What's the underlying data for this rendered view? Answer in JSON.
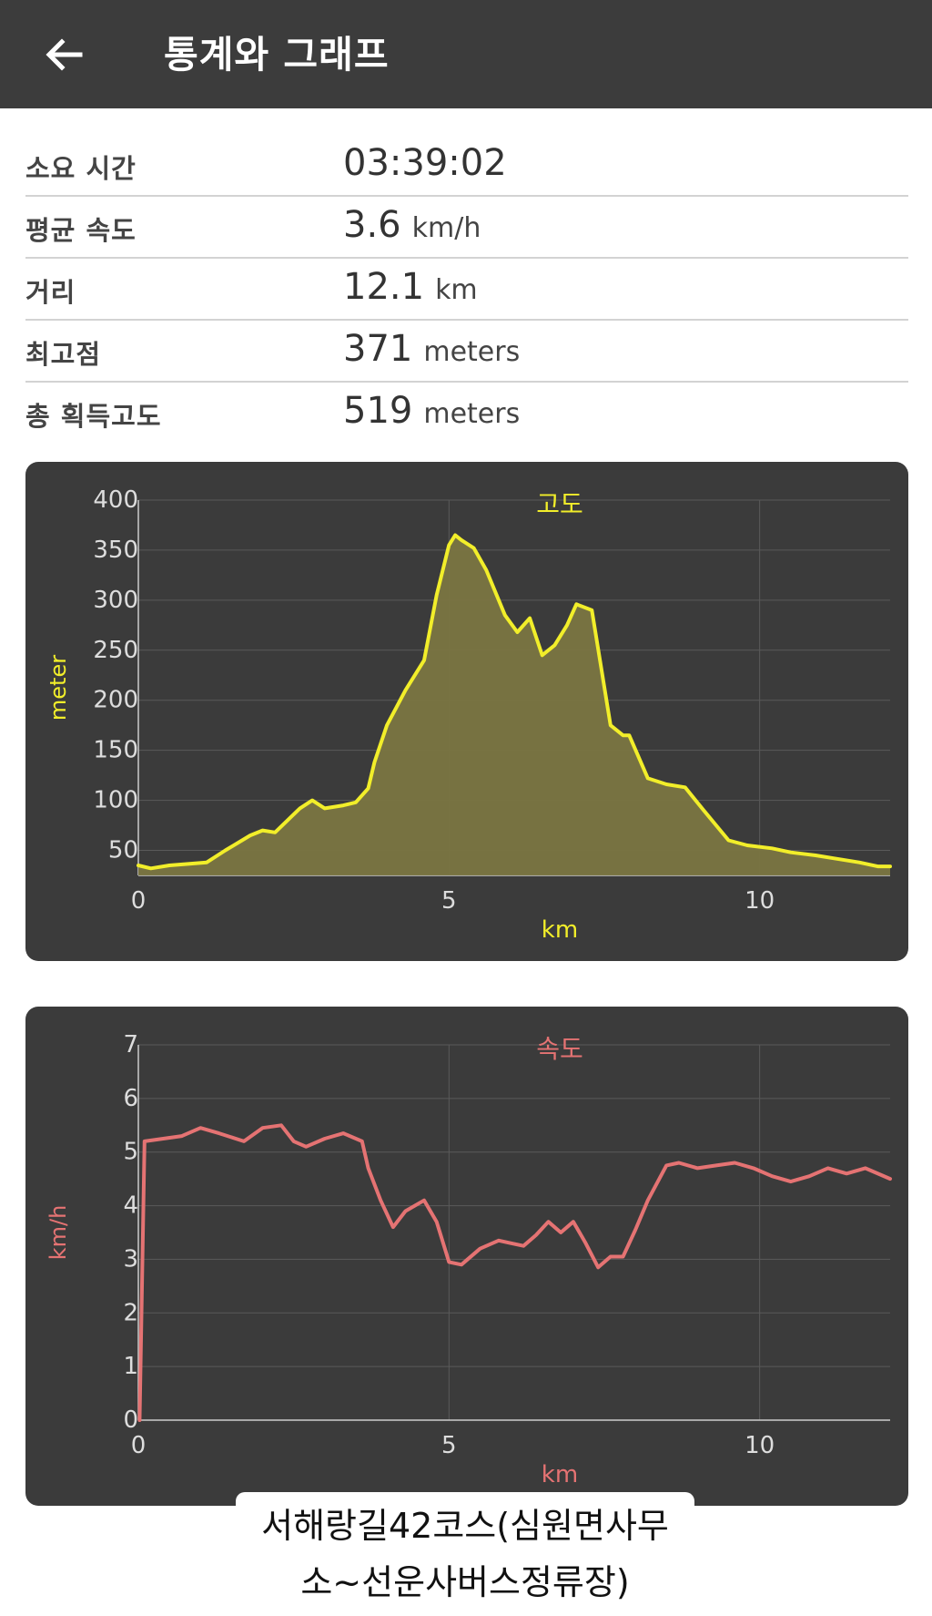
{
  "appbar": {
    "title": "통계와 그래프",
    "back_icon": "arrow-left-icon"
  },
  "stats": [
    {
      "label": "소요 시간",
      "value": "03:39:02",
      "unit": ""
    },
    {
      "label": "평균 속도",
      "value": "3.6",
      "unit": "km/h"
    },
    {
      "label": "거리",
      "value": "12.1",
      "unit": "km"
    },
    {
      "label": "최고점",
      "value": "371",
      "unit": "meters"
    },
    {
      "label": "총 획득고도",
      "value": "519",
      "unit": "meters"
    }
  ],
  "colors": {
    "appbar": "#3c3c3c",
    "chart_bg": "#3b3b3b",
    "elevation_line": "#f2ee2a",
    "elevation_fill": "#7a7541",
    "speed_line": "#e57373",
    "grid": "#5a5a5a",
    "tick": "#dddddd"
  },
  "chart_data": [
    {
      "type": "area",
      "title": "고도",
      "xlabel": "km",
      "ylabel": "meter",
      "xlim": [
        0,
        12.1
      ],
      "ylim": [
        25,
        400
      ],
      "xticks": [
        0,
        5,
        10
      ],
      "yticks": [
        50,
        100,
        150,
        200,
        250,
        300,
        350,
        400
      ],
      "grid": true,
      "series": [
        {
          "x": [
            0,
            0.2,
            0.5,
            1.1,
            1.4,
            1.8,
            2.0,
            2.2,
            2.6,
            2.8,
            3.0,
            3.3,
            3.5,
            3.7,
            3.8,
            4.0,
            4.3,
            4.6,
            4.8,
            5.0,
            5.1,
            5.2,
            5.4,
            5.6,
            5.9,
            6.1,
            6.3,
            6.5,
            6.7,
            6.9,
            7.05,
            7.3,
            7.6,
            7.8,
            7.9,
            8.2,
            8.5,
            8.8,
            9.1,
            9.3,
            9.5,
            9.8,
            10.2,
            10.5,
            10.9,
            11.2,
            11.6,
            11.9,
            12.1
          ],
          "y": [
            35,
            32,
            35,
            38,
            50,
            65,
            70,
            68,
            92,
            100,
            92,
            95,
            98,
            112,
            138,
            175,
            210,
            240,
            305,
            355,
            365,
            360,
            352,
            330,
            285,
            268,
            282,
            245,
            255,
            275,
            296,
            290,
            175,
            165,
            165,
            122,
            116,
            113,
            90,
            75,
            60,
            55,
            52,
            48,
            45,
            42,
            38,
            34,
            34
          ]
        }
      ]
    },
    {
      "type": "line",
      "title": "속도",
      "xlabel": "km",
      "ylabel": "km/h",
      "xlim": [
        0,
        12.1
      ],
      "ylim": [
        0,
        7
      ],
      "xticks": [
        0,
        5,
        10
      ],
      "yticks": [
        0,
        1,
        2,
        3,
        4,
        5,
        6,
        7
      ],
      "grid": true,
      "series": [
        {
          "x": [
            0.02,
            0.1,
            0.4,
            0.7,
            1.0,
            1.3,
            1.7,
            2.0,
            2.3,
            2.5,
            2.7,
            3.0,
            3.3,
            3.6,
            3.7,
            3.9,
            4.1,
            4.3,
            4.6,
            4.8,
            5.0,
            5.2,
            5.5,
            5.8,
            6.0,
            6.2,
            6.4,
            6.6,
            6.8,
            7.0,
            7.2,
            7.4,
            7.6,
            7.8,
            8.0,
            8.2,
            8.5,
            8.7,
            9.0,
            9.3,
            9.6,
            9.9,
            10.2,
            10.5,
            10.8,
            11.1,
            11.4,
            11.7,
            12.1
          ],
          "y": [
            0.0,
            5.2,
            5.25,
            5.3,
            5.45,
            5.35,
            5.2,
            5.45,
            5.5,
            5.2,
            5.1,
            5.25,
            5.35,
            5.2,
            4.7,
            4.1,
            3.6,
            3.9,
            4.1,
            3.7,
            2.95,
            2.9,
            3.2,
            3.35,
            3.3,
            3.25,
            3.45,
            3.7,
            3.5,
            3.7,
            3.3,
            2.85,
            3.05,
            3.05,
            3.55,
            4.1,
            4.75,
            4.8,
            4.7,
            4.75,
            4.8,
            4.7,
            4.55,
            4.45,
            4.55,
            4.7,
            4.6,
            4.7,
            4.5
          ]
        }
      ]
    }
  ],
  "caption": {
    "line1": "서해랑길42코스(심원면사무",
    "line2": "소~선운사버스정류장)"
  }
}
